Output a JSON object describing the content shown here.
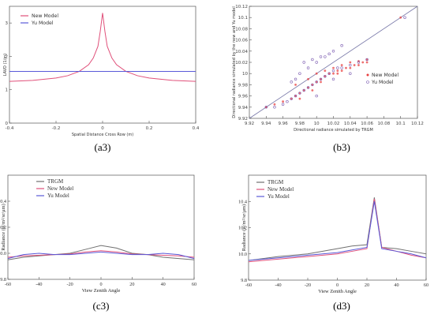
{
  "chart_data": [
    {
      "panel": "(a3)",
      "type": "line",
      "xlabel": "Spatial Distance Cross Row (m)",
      "ylabel": "LAVD (1/m)",
      "xlim": [
        -0.4,
        0.4
      ],
      "ylim": [
        0,
        3.5
      ],
      "x_ticks": [
        "-0.4",
        "-0.2",
        "0",
        "0.2",
        "0.4"
      ],
      "y_ticks": [
        "0",
        "1",
        "2",
        "3"
      ],
      "legend": "top-left",
      "series": [
        {
          "name": "New Model",
          "color": "#e0507a",
          "x": [
            -0.4,
            -0.3,
            -0.2,
            -0.15,
            -0.1,
            -0.06,
            -0.04,
            -0.02,
            -0.01,
            0,
            0.01,
            0.02,
            0.04,
            0.06,
            0.1,
            0.15,
            0.2,
            0.3,
            0.4
          ],
          "y": [
            1.25,
            1.28,
            1.35,
            1.42,
            1.55,
            1.75,
            1.95,
            2.3,
            2.75,
            3.3,
            2.75,
            2.3,
            1.95,
            1.75,
            1.55,
            1.42,
            1.35,
            1.28,
            1.25
          ]
        },
        {
          "name": "Yu Model",
          "color": "#5a5ad8",
          "x": [
            -0.4,
            0.4
          ],
          "y": [
            1.55,
            1.55
          ]
        }
      ]
    },
    {
      "panel": "(b3)",
      "type": "scatter",
      "xlabel": "Directional radiance simulated by TRGM",
      "ylabel": "Directional radiance simulated by the new and Yu model",
      "xlim": [
        9.92,
        10.12
      ],
      "ylim": [
        9.92,
        10.12
      ],
      "x_ticks": [
        "9.92",
        "9.94",
        "9.96",
        "9.98",
        "10",
        "10.02",
        "10.04",
        "10.06",
        "10.08",
        "10.1",
        "10.12"
      ],
      "y_ticks": [
        "9.92",
        "9.94",
        "9.96",
        "9.98",
        "10",
        "10.02",
        "10.04",
        "10.06",
        "10.08",
        "10.1",
        "10.12"
      ],
      "legend": "right",
      "reference_line": [
        [
          9.92,
          9.92
        ],
        [
          10.12,
          10.12
        ]
      ],
      "series": [
        {
          "name": "New Model",
          "color": "#e84040",
          "x": [
            9.94,
            9.95,
            9.96,
            9.97,
            9.975,
            9.98,
            9.985,
            9.99,
            9.995,
            10.0,
            10.005,
            10.01,
            10.015,
            10.02,
            10.025,
            10.03,
            10.035,
            10.04,
            10.045,
            10.05,
            10.055,
            10.06,
            9.975,
            9.99,
            10.0,
            10.01,
            10.02,
            10.03,
            10.04,
            10.05,
            10.06,
            10.1,
            9.98,
            9.995,
            10.005,
            10.025
          ],
          "y": [
            9.94,
            9.945,
            9.95,
            9.955,
            9.96,
            9.965,
            9.97,
            9.975,
            9.98,
            9.985,
            9.99,
            9.995,
            10.0,
            10.0,
            10.005,
            10.005,
            10.01,
            10.01,
            10.015,
            10.015,
            10.02,
            10.02,
            9.98,
            9.99,
            10.0,
            10.005,
            10.01,
            10.015,
            10.02,
            10.022,
            10.025,
            10.1,
            9.955,
            9.97,
            9.985,
            10.0
          ]
        },
        {
          "name": "Yu Model",
          "color": "#7a5ab0",
          "x": [
            9.94,
            9.95,
            9.96,
            9.965,
            9.97,
            9.975,
            9.98,
            9.985,
            9.99,
            9.995,
            10.0,
            10.005,
            10.01,
            10.015,
            10.02,
            10.025,
            10.03,
            10.04,
            10.05,
            10.06,
            9.97,
            9.98,
            9.99,
            10.0,
            10.01,
            10.02,
            10.03,
            9.985,
            9.995,
            10.005,
            10.015,
            10.105,
            9.975,
            10.0,
            10.02,
            10.04
          ],
          "y": [
            9.94,
            9.94,
            9.945,
            9.95,
            9.955,
            9.96,
            9.965,
            9.97,
            9.975,
            9.98,
            9.985,
            9.99,
            9.995,
            10.0,
            10.005,
            10.01,
            10.01,
            10.015,
            10.02,
            10.025,
            9.985,
            10.0,
            10.01,
            10.02,
            10.03,
            10.04,
            10.05,
            10.02,
            10.025,
            10.03,
            10.035,
            10.1,
            9.99,
            9.96,
            9.99,
            10.0
          ]
        }
      ]
    },
    {
      "panel": "(c3)",
      "type": "line",
      "xlabel": "View Zenith Angle",
      "ylabel": "Radiance (w/m²/sr/μm)",
      "xlim": [
        -60,
        60
      ],
      "ylim": [
        9.8,
        10.6
      ],
      "x_ticks": [
        "-60",
        "-40",
        "-20",
        "0",
        "20",
        "40",
        "60"
      ],
      "y_ticks": [
        "9.8",
        "10.0",
        "10.2",
        "10.4"
      ],
      "legend": "top-left",
      "series": [
        {
          "name": "TRGM",
          "color": "#707070",
          "x": [
            -60,
            -50,
            -40,
            -30,
            -20,
            -10,
            0,
            10,
            20,
            30,
            40,
            50,
            60
          ],
          "y": [
            9.95,
            9.97,
            9.98,
            9.99,
            10.0,
            10.03,
            10.06,
            10.04,
            10.0,
            9.99,
            9.97,
            9.96,
            9.95
          ]
        },
        {
          "name": "New Model",
          "color": "#e0507a",
          "x": [
            -60,
            -50,
            -40,
            -30,
            -20,
            -10,
            0,
            10,
            20,
            30,
            40,
            50,
            60
          ],
          "y": [
            9.97,
            9.98,
            9.985,
            9.99,
            9.995,
            10.01,
            10.02,
            10.01,
            9.995,
            9.99,
            9.985,
            9.98,
            9.97
          ]
        },
        {
          "name": "Yu Model",
          "color": "#5a5ad8",
          "x": [
            -60,
            -50,
            -40,
            -30,
            -20,
            -10,
            0,
            10,
            20,
            30,
            40,
            50,
            60
          ],
          "y": [
            9.96,
            9.99,
            10.0,
            9.99,
            9.99,
            10.0,
            10.01,
            10.0,
            9.99,
            9.99,
            10.0,
            9.99,
            9.96
          ]
        }
      ]
    },
    {
      "panel": "(d3)",
      "type": "line",
      "xlabel": "View Zenith Angle",
      "ylabel": "Radiance (w/m²/sr/μm)",
      "xlim": [
        -60,
        60
      ],
      "ylim": [
        9.8,
        10.6
      ],
      "x_ticks": [
        "-60",
        "-40",
        "-20",
        "0",
        "20",
        "40",
        "60"
      ],
      "y_ticks": [
        "9.8",
        "10.0",
        "10.2",
        "10.4"
      ],
      "legend": "top-left",
      "series": [
        {
          "name": "TRGM",
          "color": "#707070",
          "x": [
            -60,
            -40,
            -20,
            0,
            10,
            20,
            25,
            30,
            40,
            50,
            60
          ],
          "y": [
            9.95,
            9.98,
            10.0,
            10.04,
            10.06,
            10.07,
            10.43,
            10.05,
            10.04,
            10.02,
            10.0
          ]
        },
        {
          "name": "New Model",
          "color": "#e0507a",
          "x": [
            -60,
            -40,
            -20,
            0,
            10,
            20,
            25,
            30,
            40,
            50,
            60
          ],
          "y": [
            9.94,
            9.96,
            9.98,
            10.0,
            10.02,
            10.04,
            10.42,
            10.05,
            10.02,
            9.99,
            9.97
          ]
        },
        {
          "name": "Yu Model",
          "color": "#5a5ad8",
          "x": [
            -60,
            -40,
            -20,
            0,
            10,
            20,
            25,
            30,
            40,
            50,
            60
          ],
          "y": [
            9.95,
            9.97,
            9.99,
            10.01,
            10.03,
            10.05,
            10.4,
            10.04,
            10.02,
            10.0,
            9.97
          ]
        }
      ]
    }
  ]
}
